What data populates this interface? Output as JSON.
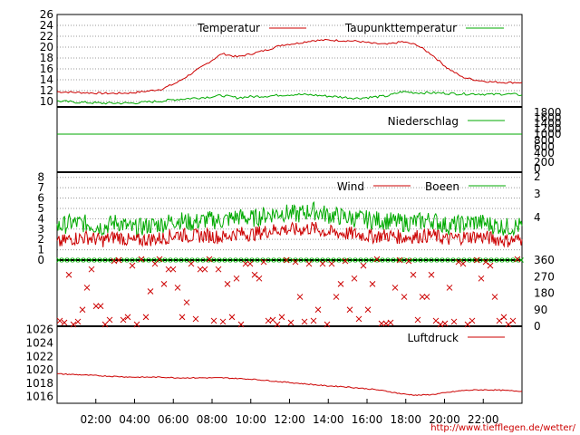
{
  "chart_data": [
    {
      "type": "line",
      "legend_placement": "top-right",
      "y_ticks": [
        "10",
        "12",
        "14",
        "16",
        "18",
        "20",
        "22",
        "24",
        "26"
      ],
      "ylim": [
        9,
        26
      ],
      "series": [
        {
          "name": "Temperatur",
          "color": "#cc0000",
          "values": [
            11.8,
            11.7,
            11.6,
            11.5,
            11.5,
            11.6,
            11.9,
            12.3,
            13.5,
            15.2,
            17.0,
            18.8,
            18.2,
            18.8,
            19.5,
            20.4,
            20.7,
            21.2,
            21.3,
            21.2,
            21.1,
            20.7,
            20.5,
            21.0,
            20.4,
            18.6,
            16.2,
            14.5,
            13.9,
            13.6,
            13.5,
            13.5
          ]
        },
        {
          "name": "Taupunkttemperatur",
          "color": "#00aa00",
          "values": [
            10.1,
            9.9,
            9.8,
            9.7,
            9.7,
            9.7,
            9.9,
            10.1,
            10.4,
            10.6,
            10.8,
            11.1,
            10.7,
            10.9,
            11.0,
            11.2,
            11.3,
            11.2,
            11.0,
            10.8,
            10.6,
            10.8,
            11.0,
            11.8,
            11.6,
            11.6,
            11.5,
            11.4,
            11.4,
            11.3,
            11.4,
            11.2
          ]
        }
      ]
    },
    {
      "type": "line",
      "legend_placement": "top-right",
      "y_ticks": [
        "0",
        "200",
        "400",
        "600",
        "800",
        "1000",
        "1200",
        "1400",
        "1600",
        "1800"
      ],
      "ylim": [
        0,
        1800
      ],
      "series": [
        {
          "name": "Niederschlag",
          "color": "#00aa00",
          "values": [
            1000,
            1000
          ]
        }
      ]
    },
    {
      "type": "line",
      "legend_placement": "top-right",
      "y_ticks": [
        "0",
        "1",
        "2",
        "3",
        "4",
        "5",
        "6",
        "7",
        "8"
      ],
      "y2_ticks": [
        "2",
        "3",
        "4"
      ],
      "ylim": [
        0,
        8.5
      ],
      "series": [
        {
          "name": "Wind",
          "color": "#cc0000",
          "values": [
            1.6,
            2.1,
            2.2,
            1.9,
            2.3,
            1.8,
            2.0,
            2.1,
            2.5,
            2.3,
            2.4,
            2.2,
            2.6,
            2.5,
            2.8,
            3.0,
            2.9,
            3.1,
            2.7,
            2.6,
            2.5,
            2.3,
            2.4,
            2.2,
            2.3,
            2.4,
            2.0,
            2.2,
            2.3,
            2.1,
            1.9,
            2.0
          ]
        },
        {
          "name": "Boeen",
          "color": "#00aa00",
          "values": [
            3.2,
            3.6,
            3.5,
            3.2,
            3.7,
            3.0,
            3.3,
            3.5,
            3.9,
            3.6,
            3.9,
            3.8,
            4.2,
            4.0,
            4.4,
            4.6,
            4.4,
            4.8,
            4.4,
            4.2,
            4.0,
            3.9,
            3.8,
            3.6,
            3.7,
            3.9,
            3.3,
            3.5,
            3.7,
            3.4,
            3.2,
            3.3
          ]
        }
      ]
    },
    {
      "type": "scatter",
      "y2_ticks": [
        "0",
        "90",
        "180",
        "270",
        "360"
      ],
      "ylim": [
        0,
        360
      ]
    },
    {
      "type": "line",
      "legend_placement": "top-right",
      "y_ticks": [
        "1016",
        "1018",
        "1020",
        "1022",
        "1024",
        "1026"
      ],
      "ylim": [
        1015,
        1026.5
      ],
      "x_ticks": [
        "02:00",
        "04:00",
        "06:00",
        "08:00",
        "10:00",
        "12:00",
        "14:00",
        "16:00",
        "18:00",
        "20:00",
        "22:00"
      ],
      "series": [
        {
          "name": "Luftdruck",
          "color": "#cc0000",
          "values": [
            1019.4,
            1019.3,
            1019.2,
            1019.1,
            1019.0,
            1018.9,
            1018.9,
            1018.9,
            1018.8,
            1018.8,
            1018.8,
            1018.8,
            1018.7,
            1018.6,
            1018.4,
            1018.2,
            1018.0,
            1017.8,
            1017.6,
            1017.5,
            1017.3,
            1017.1,
            1016.8,
            1016.4,
            1016.2,
            1016.3,
            1016.6,
            1016.9,
            1017.0,
            1017.0,
            1016.9,
            1016.8
          ]
        }
      ]
    }
  ],
  "footer": {
    "url": "http://www.tiefflegen.de/wetter/"
  }
}
